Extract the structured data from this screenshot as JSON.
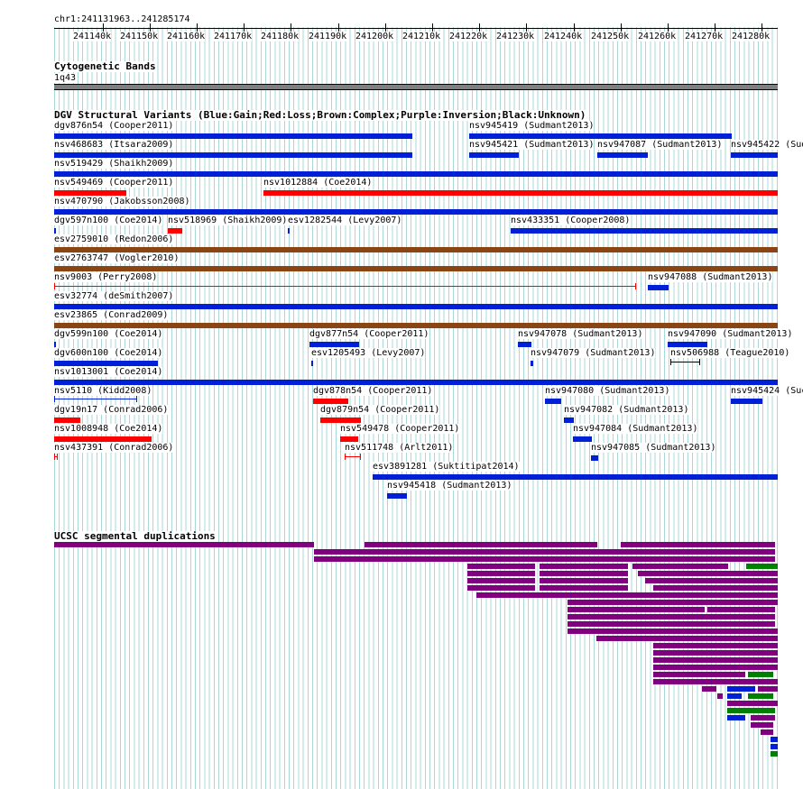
{
  "ruler": {
    "position": "chr1:241131963..241285174",
    "ticks": [
      "241140k",
      "241150k",
      "241160k",
      "241170k",
      "241180k",
      "241190k",
      "241200k",
      "241210k",
      "241220k",
      "241230k",
      "241240k",
      "241250k",
      "241260k",
      "241270k",
      "241280k"
    ]
  },
  "cytoband": {
    "title": "Cytogenetic Bands",
    "band": "1q43"
  },
  "dgv": {
    "title": "DGV Structural Variants (Blue:Gain;Red:Loss;Brown:Complex;Purple:Inversion;Black:Unknown)",
    "colors": {
      "gain": "#0020d8",
      "loss": "#ff0000",
      "complex": "#8b4513"
    },
    "features": [
      {
        "label": "dgv876n54 (Cooper2011)",
        "type": "gain"
      },
      {
        "label": "nsv945419 (Sudmant2013)",
        "type": "gain"
      },
      {
        "label": "nsv468683 (Itsara2009)",
        "type": "gain"
      },
      {
        "label": "nsv945421 (Sudmant2013)",
        "type": "gain"
      },
      {
        "label": "nsv947087 (Sudmant2013)",
        "type": "gain"
      },
      {
        "label": "nsv945422 (Sud",
        "type": "gain"
      },
      {
        "label": "nsv519429 (Shaikh2009)",
        "type": "gain"
      },
      {
        "label": "nsv549469 (Cooper2011)",
        "type": "loss"
      },
      {
        "label": "nsv1012884 (Coe2014)",
        "type": "loss"
      },
      {
        "label": "nsv470790 (Jakobsson2008)",
        "type": "gain"
      },
      {
        "label": "dgv597n100 (Coe2014)",
        "type": "gain"
      },
      {
        "label": "nsv518969 (Shaikh2009)",
        "type": "loss"
      },
      {
        "label": "esv1282544 (Levy2007)",
        "type": "gain"
      },
      {
        "label": "nsv433351 (Cooper2008)",
        "type": "gain"
      },
      {
        "label": "esv2759010 (Redon2006)",
        "type": "complex"
      },
      {
        "label": "esv2763747 (Vogler2010)",
        "type": "complex"
      },
      {
        "label": "nsv9003 (Perry2008)",
        "type": "loss"
      },
      {
        "label": "nsv947088 (Sudmant2013)",
        "type": "gain"
      },
      {
        "label": "esv32774 (deSmith2007)",
        "type": "gain"
      },
      {
        "label": "esv23865 (Conrad2009)",
        "type": "complex"
      },
      {
        "label": "dgv599n100 (Coe2014)",
        "type": "gain"
      },
      {
        "label": "dgv877n54 (Cooper2011)",
        "type": "gain"
      },
      {
        "label": "nsv947078 (Sudmant2013)",
        "type": "gain"
      },
      {
        "label": "nsv947090 (Sudmant2013)",
        "type": "gain"
      },
      {
        "label": "dgv600n100 (Coe2014)",
        "type": "gain"
      },
      {
        "label": "esv1205493 (Levy2007)",
        "type": "gain"
      },
      {
        "label": "nsv947079 (Sudmant2013)",
        "type": "gain"
      },
      {
        "label": "nsv506988 (Teague2010)",
        "type": "unknown"
      },
      {
        "label": "nsv1013001 (Coe2014)",
        "type": "gain"
      },
      {
        "label": "nsv5110 (Kidd2008)",
        "type": "gain"
      },
      {
        "label": "dgv878n54 (Cooper2011)",
        "type": "loss"
      },
      {
        "label": "nsv947080 (Sudmant2013)",
        "type": "gain"
      },
      {
        "label": "nsv945424 (Suc",
        "type": "gain"
      },
      {
        "label": "dgv19n17 (Conrad2006)",
        "type": "loss"
      },
      {
        "label": "dgv879n54 (Cooper2011)",
        "type": "loss"
      },
      {
        "label": "nsv947082 (Sudmant2013)",
        "type": "gain"
      },
      {
        "label": "nsv1008948 (Coe2014)",
        "type": "loss"
      },
      {
        "label": "nsv549478 (Cooper2011)",
        "type": "loss"
      },
      {
        "label": "nsv947084 (Sudmant2013)",
        "type": "gain"
      },
      {
        "label": "nsv437391 (Conrad2006)",
        "type": "loss"
      },
      {
        "label": "nsv511748 (Arlt2011)",
        "type": "loss"
      },
      {
        "label": "nsv947085 (Sudmant2013)",
        "type": "gain"
      },
      {
        "label": "esv3891281 (Suktitipat2014)",
        "type": "gain"
      },
      {
        "label": "nsv945418 (Sudmant2013)",
        "type": "gain"
      }
    ]
  },
  "segdups": {
    "title": "UCSC segmental duplications",
    "colors": {
      "purple": "#800080",
      "green": "#008000",
      "blue": "#0020d8"
    }
  }
}
